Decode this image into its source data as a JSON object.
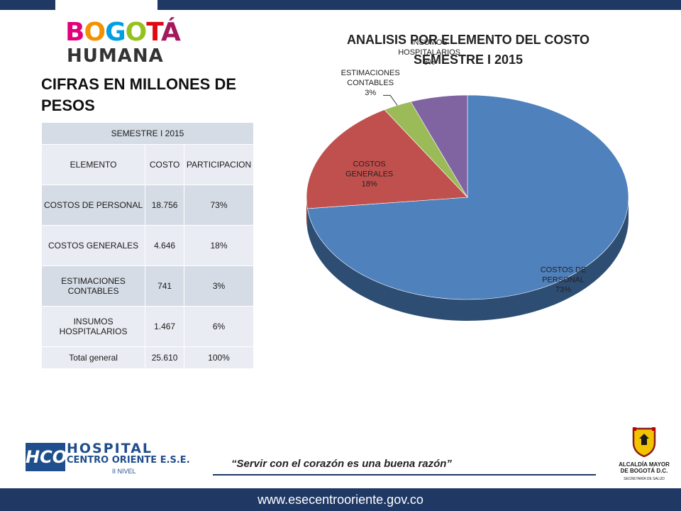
{
  "brand": {
    "line1_letters": [
      {
        "t": "B",
        "color": "#e4007c"
      },
      {
        "t": "O",
        "color": "#f39200"
      },
      {
        "t": "G",
        "color": "#009fe3"
      },
      {
        "t": "O",
        "color": "#95c11f"
      },
      {
        "t": "T",
        "color": "#e30613"
      },
      {
        "t": "Á",
        "color": "#a3195b"
      }
    ],
    "line2": "HUMANA"
  },
  "subtitle": "CIFRAS EN MILLONES DE PESOS",
  "chart_title_line1": "ANALISIS POR ELEMENTO DEL COSTO",
  "chart_title_line2": "SEMESTRE I 2015",
  "table": {
    "period": "SEMESTRE I 2015",
    "headers": [
      "ELEMENTO",
      "COSTO",
      "PARTICIPACION"
    ],
    "rows": [
      [
        "COSTOS DE PERSONAL",
        "18.756",
        "73%"
      ],
      [
        "COSTOS GENERALES",
        "4.646",
        "18%"
      ],
      [
        "ESTIMACIONES CONTABLES",
        "741",
        "3%"
      ],
      [
        "INSUMOS HOSPITALARIOS",
        "1.467",
        "6%"
      ]
    ],
    "total": [
      "Total general",
      "25.610",
      "100%"
    ]
  },
  "chart_data": {
    "type": "pie",
    "style": "3d",
    "title": "ANALISIS POR ELEMENTO DEL COSTO SEMESTRE I 2015",
    "start_angle_deg": -90,
    "slices": [
      {
        "label": "COSTOS DE PERSONAL",
        "value": 18756,
        "percent": "73%",
        "label_lines": [
          "COSTOS DE",
          "PERSONAL",
          "73%"
        ],
        "color": "#4f81bd",
        "side_color": "#2e4d73"
      },
      {
        "label": "COSTOS GENERALES",
        "value": 4646,
        "percent": "18%",
        "label_lines": [
          "COSTOS",
          "GENERALES",
          "18%"
        ],
        "color": "#c0504d",
        "side_color": "#7a302e"
      },
      {
        "label": "ESTIMACIONES CONTABLES",
        "value": 741,
        "percent": "3%",
        "label_lines": [
          "ESTIMACIONES",
          "CONTABLES",
          "3%"
        ],
        "color": "#9bbb59",
        "side_color": "#60753a"
      },
      {
        "label": "INSUMOS HOSPITALARIOS",
        "value": 1467,
        "percent": "6%",
        "label_lines": [
          "INSUMOS",
          "HOSPITALARIOS",
          "6%"
        ],
        "color": "#8064a2",
        "side_color": "#4f3d65"
      }
    ]
  },
  "hospital": {
    "mark": "HCO",
    "name": "HOSPITAL",
    "sub": "CENTRO ORIENTE E.S.E.",
    "level": "II NIVEL"
  },
  "slogan": "“Servir con el corazón es una buena razón”",
  "alcaldia": {
    "line1": "ALCALDÍA MAYOR",
    "line2": "DE BOGOTÁ D.C.",
    "line3": "SECRETARÍA DE SALUD"
  },
  "website": "www.esecentrooriente.gov.co",
  "colors": {
    "navy": "#1f3864",
    "hospital_blue": "#1f4e8c"
  }
}
